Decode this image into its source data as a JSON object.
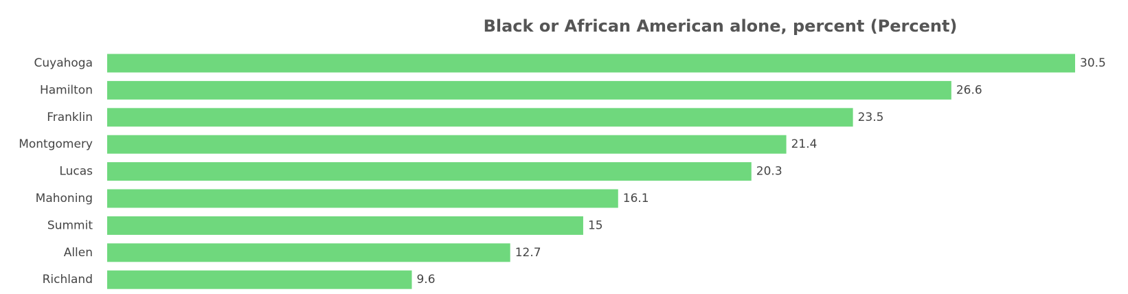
{
  "chart_data": {
    "type": "bar",
    "orientation": "horizontal",
    "title": "Black or African American alone, percent (Percent)",
    "categories": [
      "Cuyahoga",
      "Hamilton",
      "Franklin",
      "Montgomery",
      "Lucas",
      "Mahoning",
      "Summit",
      "Allen",
      "Richland"
    ],
    "values": [
      30.5,
      26.6,
      23.5,
      21.4,
      20.3,
      16.1,
      15,
      12.7,
      9.6
    ],
    "value_labels": [
      "30.5",
      "26.6",
      "23.5",
      "21.4",
      "20.3",
      "16.1",
      "15",
      "12.7",
      "9.6"
    ],
    "xlim": [
      0,
      30.5
    ],
    "grid": false,
    "bar_color": "#6fd87d",
    "text_color": "#444444",
    "title_color": "#555555"
  }
}
